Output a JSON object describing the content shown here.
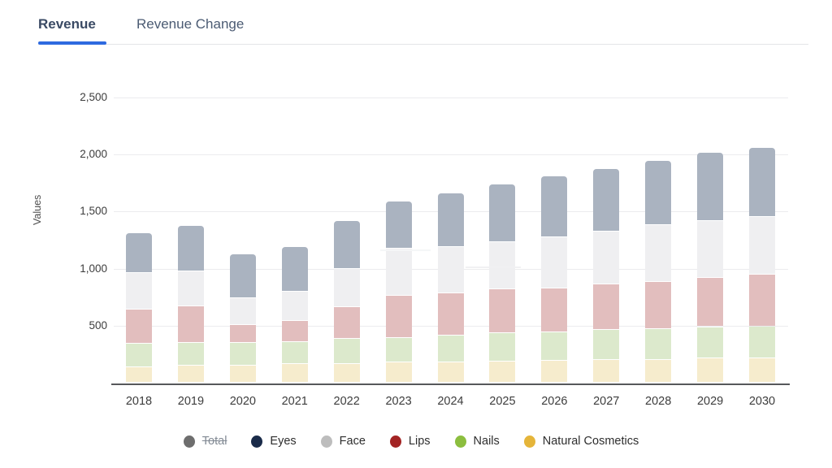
{
  "tabs": [
    {
      "label": "Revenue",
      "active": true
    },
    {
      "label": "Revenue Change",
      "active": false
    }
  ],
  "chart_data": {
    "type": "bar",
    "stacked": true,
    "title": "",
    "xlabel": "",
    "ylabel": "Values",
    "categories": [
      "2018",
      "2019",
      "2020",
      "2021",
      "2022",
      "2023",
      "2024",
      "2025",
      "2026",
      "2027",
      "2028",
      "2029",
      "2030"
    ],
    "y_ticks": [
      500,
      1000,
      1500,
      2000,
      2500
    ],
    "ylim": [
      0,
      2500
    ],
    "grid": true,
    "legend_position": "bottom",
    "stack_order": [
      "Natural Cosmetics",
      "Nails",
      "Lips",
      "Face",
      "Eyes"
    ],
    "series": [
      {
        "name": "Total",
        "color": "#6e6e6e",
        "bar_color": "#6e6e6e",
        "hidden": true,
        "values": [
          1310,
          1375,
          1125,
          1190,
          1420,
          1590,
          1655,
          1735,
          1805,
          1875,
          1940,
          2010,
          2055
        ]
      },
      {
        "name": "Eyes",
        "color": "#1a2b49",
        "bar_color": "#aab3c0",
        "hidden": false,
        "values": [
          350,
          395,
          380,
          390,
          425,
          415,
          465,
          505,
          530,
          550,
          560,
          595,
          600
        ]
      },
      {
        "name": "Face",
        "color": "#bdbdbd",
        "bar_color": "#efeff1",
        "hidden": false,
        "values": [
          320,
          310,
          235,
          260,
          330,
          415,
          405,
          410,
          445,
          460,
          495,
          495,
          510
        ]
      },
      {
        "name": "Lips",
        "color": "#a32424",
        "bar_color": "#e2bebe",
        "hidden": false,
        "values": [
          295,
          315,
          155,
          180,
          280,
          365,
          370,
          380,
          385,
          400,
          415,
          430,
          450
        ]
      },
      {
        "name": "Nails",
        "color": "#8cbe3f",
        "bar_color": "#dce9cc",
        "hidden": false,
        "values": [
          205,
          205,
          200,
          195,
          215,
          215,
          235,
          250,
          250,
          265,
          265,
          275,
          275
        ]
      },
      {
        "name": "Natural Cosmetics",
        "color": "#e5b53a",
        "bar_color": "#f6eccd",
        "hidden": false,
        "values": [
          140,
          150,
          155,
          165,
          170,
          180,
          180,
          190,
          195,
          200,
          205,
          215,
          220
        ]
      }
    ]
  }
}
